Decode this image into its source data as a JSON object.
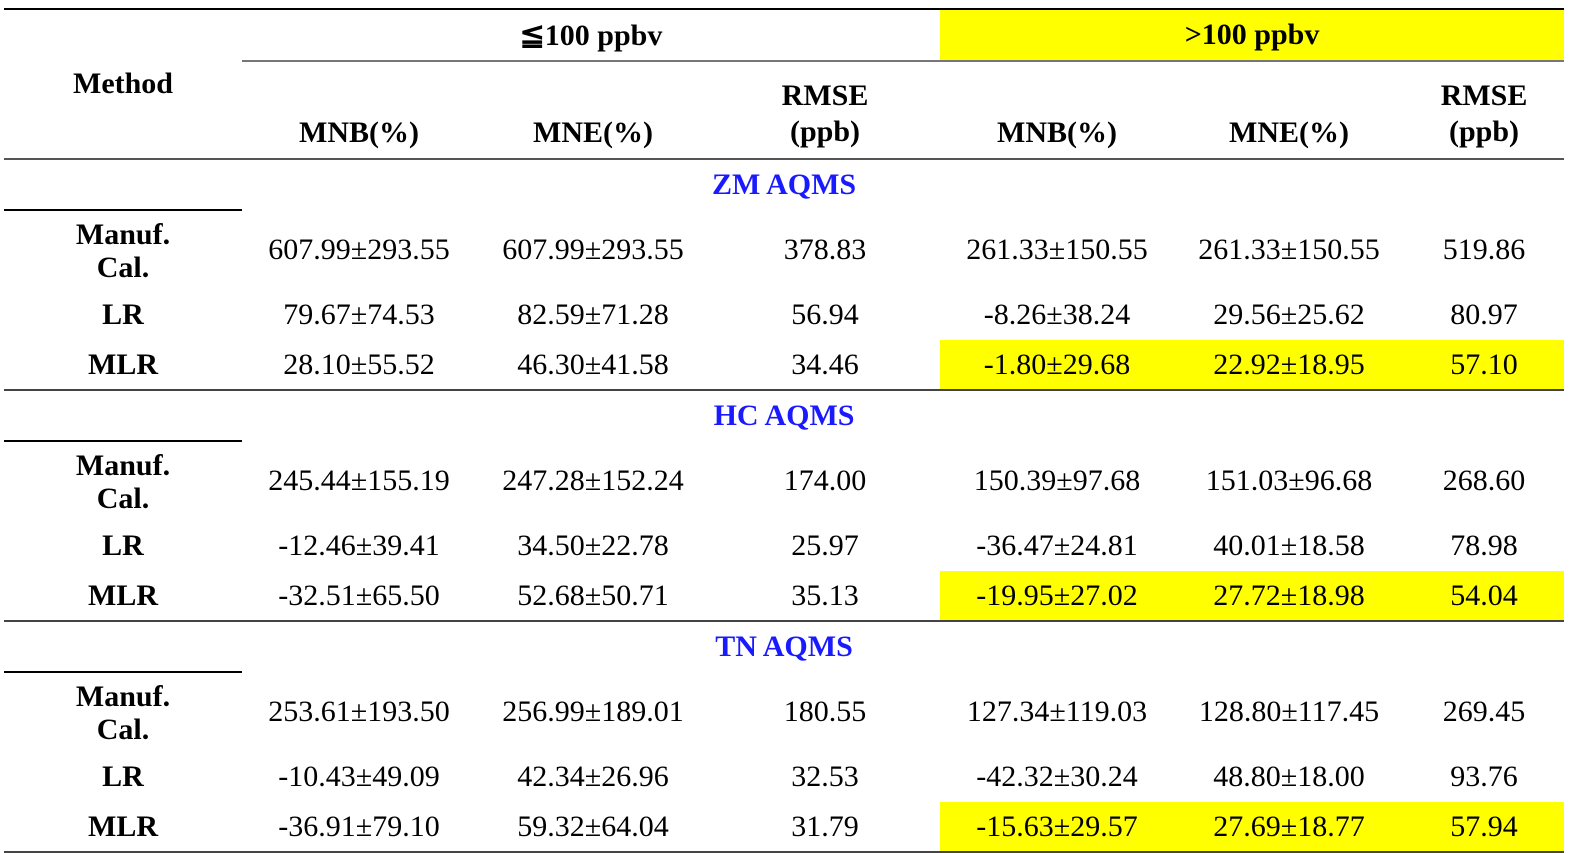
{
  "header": {
    "method": "Method",
    "group_low": "≦100 ppbv",
    "group_high": ">100 ppbv",
    "columns": [
      "MNB(%)",
      "MNE(%)",
      "RMSE\n(ppb)",
      "MNB(%)",
      "MNE(%)",
      "RMSE\n(ppb)"
    ],
    "rmse_line1": "RMSE",
    "rmse_line2": "(ppb)"
  },
  "highlight_color": "#ffff00",
  "section_color": "#1a1aff",
  "sections": [
    {
      "title": "ZM AQMS",
      "rows": [
        {
          "method": "Manuf.\nCal.",
          "m1": "Manuf.",
          "m2": "Cal.",
          "values": [
            "607.99±293.55",
            "607.99±293.55",
            "378.83",
            "261.33±150.55",
            "261.33±150.55",
            "519.86"
          ]
        },
        {
          "method": "LR",
          "values": [
            "79.67±74.53",
            "82.59±71.28",
            "56.94",
            "-8.26±38.24",
            "29.56±25.62",
            "80.97"
          ]
        },
        {
          "method": "MLR",
          "values": [
            "28.10±55.52",
            "46.30±41.58",
            "34.46",
            "-1.80±29.68",
            "22.92±18.95",
            "57.10"
          ]
        }
      ]
    },
    {
      "title": "HC AQMS",
      "rows": [
        {
          "method": "Manuf.\nCal.",
          "m1": "Manuf.",
          "m2": "Cal.",
          "values": [
            "245.44±155.19",
            "247.28±152.24",
            "174.00",
            "150.39±97.68",
            "151.03±96.68",
            "268.60"
          ]
        },
        {
          "method": "LR",
          "values": [
            "-12.46±39.41",
            "34.50±22.78",
            "25.97",
            "-36.47±24.81",
            "40.01±18.58",
            "78.98"
          ]
        },
        {
          "method": "MLR",
          "values": [
            "-32.51±65.50",
            "52.68±50.71",
            "35.13",
            "-19.95±27.02",
            "27.72±18.98",
            "54.04"
          ]
        }
      ]
    },
    {
      "title": "TN AQMS",
      "rows": [
        {
          "method": "Manuf.\nCal.",
          "m1": "Manuf.",
          "m2": "Cal.",
          "values": [
            "253.61±193.50",
            "256.99±189.01",
            "180.55",
            "127.34±119.03",
            "128.80±117.45",
            "269.45"
          ]
        },
        {
          "method": "LR",
          "values": [
            "-10.43±49.09",
            "42.34±26.96",
            "32.53",
            "-42.32±30.24",
            "48.80±18.00",
            "93.76"
          ]
        },
        {
          "method": "MLR",
          "values": [
            "-36.91±79.10",
            "59.32±64.04",
            "31.79",
            "-15.63±29.57",
            "27.69±18.77",
            "57.94"
          ]
        }
      ]
    }
  ]
}
